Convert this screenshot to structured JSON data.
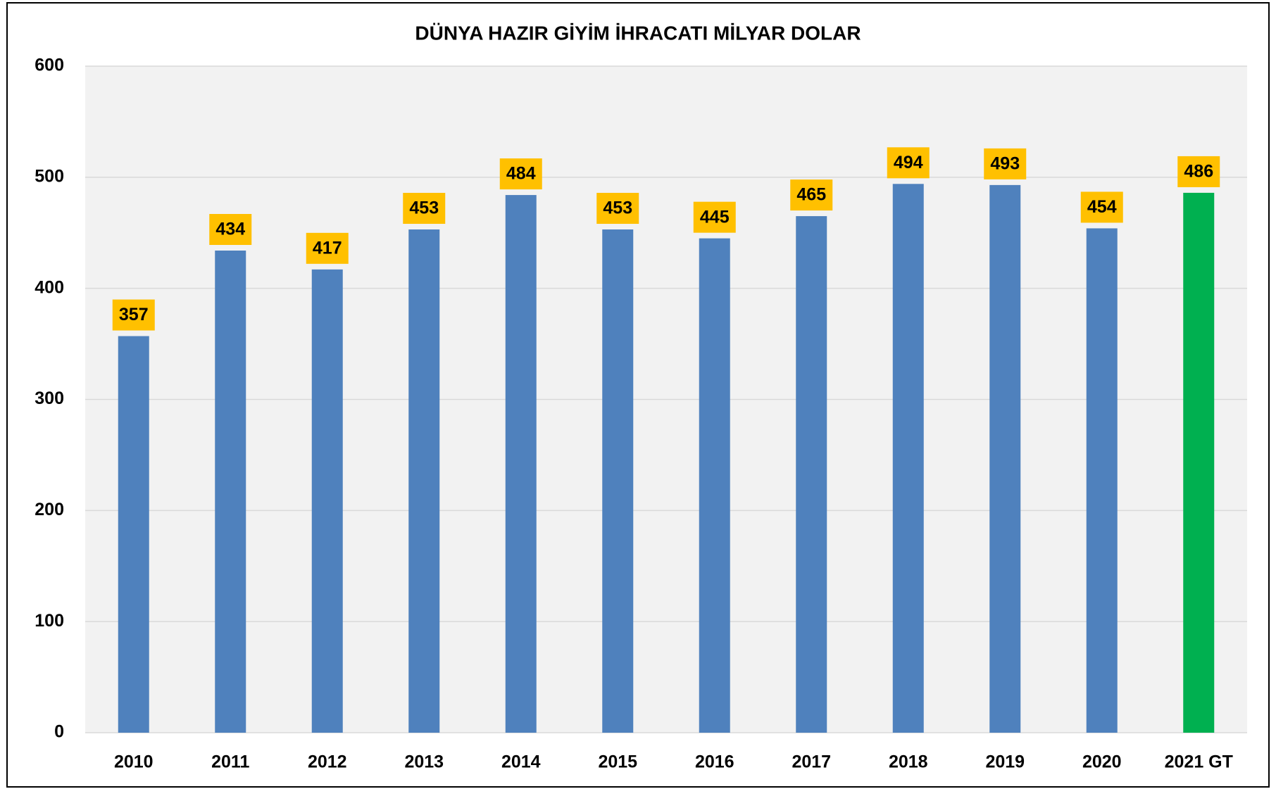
{
  "chart_data": {
    "type": "bar",
    "title": "DÜNYA HAZIR GİYİM İHRACATI MİLYAR DOLAR",
    "categories": [
      "2010",
      "2011",
      "2012",
      "2013",
      "2014",
      "2015",
      "2016",
      "2017",
      "2018",
      "2019",
      "2020",
      "2021 GT"
    ],
    "values": [
      357,
      434,
      417,
      453,
      484,
      453,
      445,
      465,
      494,
      493,
      454,
      486
    ],
    "colors": [
      "#4f81bd",
      "#4f81bd",
      "#4f81bd",
      "#4f81bd",
      "#4f81bd",
      "#4f81bd",
      "#4f81bd",
      "#4f81bd",
      "#4f81bd",
      "#4f81bd",
      "#4f81bd",
      "#00b050"
    ],
    "label_color": "#ffc000",
    "ylim": [
      0,
      600
    ],
    "yticks": [
      0,
      100,
      200,
      300,
      400,
      500,
      600
    ],
    "grid": true
  }
}
